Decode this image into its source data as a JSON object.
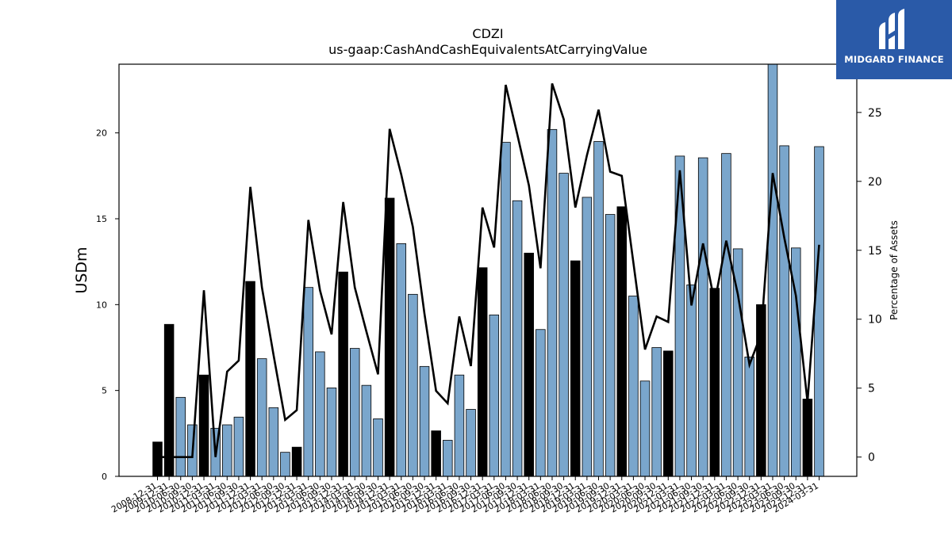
{
  "brand": {
    "name": "MIDGARD FINANCE",
    "color": "#2a5aa8"
  },
  "chart_data": {
    "type": "bar",
    "title": "CDZI",
    "subtitle": "us-gaap:CashAndCashEquivalentsAtCarryingValue",
    "ylabel": "USDm",
    "y2label": "Percentage of Assets",
    "ylim": [
      0,
      24
    ],
    "y2lim": [
      -1.4,
      28.5
    ],
    "yticks": [
      0,
      5,
      10,
      15,
      20
    ],
    "y2ticks": [
      0,
      5,
      10,
      15,
      20,
      25
    ],
    "colors": {
      "q4_bar": "#000000",
      "other_bar": "#7aa6cc",
      "line": "#000000"
    },
    "categories": [
      "2008-12-31",
      "2009-12-31",
      "2010-06-30",
      "2010-09-30",
      "2010-12-31",
      "2011-03-31",
      "2011-06-30",
      "2011-09-30",
      "2011-12-31",
      "2012-03-31",
      "2012-06-30",
      "2012-09-30",
      "2012-12-31",
      "2013-03-31",
      "2013-06-30",
      "2013-09-30",
      "2013-12-31",
      "2014-03-31",
      "2014-06-30",
      "2014-09-30",
      "2014-12-31",
      "2015-03-31",
      "2015-06-30",
      "2015-09-30",
      "2015-12-31",
      "2016-03-31",
      "2016-06-30",
      "2016-09-30",
      "2016-12-31",
      "2017-03-31",
      "2017-06-30",
      "2017-09-30",
      "2017-12-31",
      "2018-03-31",
      "2018-06-30",
      "2018-09-30",
      "2018-12-31",
      "2019-03-31",
      "2019-06-30",
      "2019-09-30",
      "2019-12-31",
      "2020-03-31",
      "2020-06-30",
      "2020-09-30",
      "2020-12-31",
      "2021-03-31",
      "2021-06-30",
      "2021-09-30",
      "2021-12-31",
      "2022-03-31",
      "2022-06-30",
      "2022-09-30",
      "2022-12-31",
      "2023-03-31",
      "2023-06-30",
      "2023-09-30",
      "2023-12-31",
      "2024-03-31"
    ],
    "series": [
      {
        "values": [
          2.0,
          8.85,
          4.6,
          3.0,
          5.9,
          2.8,
          3.0,
          3.45,
          11.35,
          6.85,
          4.0,
          1.4,
          1.7,
          11.0,
          7.25,
          5.15,
          11.9,
          7.45,
          5.3,
          3.35,
          16.2,
          13.55,
          10.6,
          6.4,
          2.65,
          2.1,
          5.9,
          3.9,
          12.15,
          9.4,
          19.45,
          16.05,
          13.0,
          8.55,
          20.2,
          17.65,
          12.55,
          16.25,
          19.5,
          15.25,
          15.7,
          10.5,
          5.55,
          7.5,
          7.3,
          18.65,
          11.15,
          18.55,
          10.95,
          18.8,
          13.25,
          6.95,
          10.0,
          24.0,
          19.25,
          13.3,
          4.5,
          19.2
        ]
      },
      {
        "values": [
          0.0,
          0.0,
          0.0,
          0.0,
          12.1,
          0.0,
          6.2,
          7.0,
          19.6,
          12.3,
          7.4,
          2.7,
          3.4,
          17.2,
          12.1,
          8.9,
          18.5,
          12.3,
          9.1,
          6.0,
          23.8,
          20.5,
          16.7,
          10.4,
          4.8,
          3.9,
          10.2,
          6.6,
          18.1,
          15.2,
          27.0,
          23.4,
          19.7,
          13.7,
          27.1,
          24.5,
          18.1,
          21.9,
          25.2,
          20.7,
          20.4,
          14.1,
          7.8,
          10.2,
          9.8,
          20.8,
          11.0,
          15.5,
          11.2,
          15.7,
          11.8,
          6.7,
          8.9,
          20.6,
          15.9,
          11.7,
          4.0,
          15.4
        ]
      }
    ]
  }
}
